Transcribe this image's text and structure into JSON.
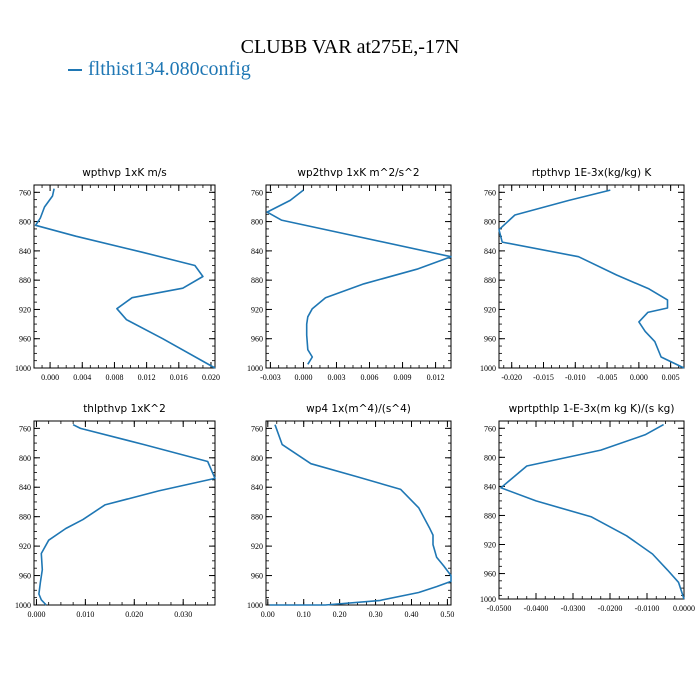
{
  "title": "CLUBB VAR at275E,-17N",
  "legend": {
    "label": "flthist134.080config",
    "color": "#1f77b4"
  },
  "chart_data": [
    {
      "type": "line",
      "title": "wpthvp  1xK m/s",
      "xlim": [
        -0.002,
        0.0205
      ],
      "xticks": [
        "0.000",
        "0.004",
        "0.008",
        "0.012",
        "0.016",
        "0.020"
      ],
      "ylim": [
        750,
        1000
      ],
      "yticks": [
        "760",
        "800",
        "840",
        "880",
        "920",
        "960",
        "1000"
      ],
      "series": [
        {
          "x": [
            0.0005,
            0.0003,
            -0.0007,
            -0.0012,
            -0.0018,
            0.0032,
            0.0115,
            0.018,
            0.019,
            0.0165,
            0.0102,
            0.0083,
            0.0095,
            0.014,
            0.0205
          ],
          "y": [
            755,
            765,
            780,
            795,
            805,
            820,
            842,
            860,
            875,
            891,
            904,
            919,
            934,
            960,
            1000
          ]
        }
      ]
    },
    {
      "type": "line",
      "title": "wp2thvp  1xK m^2/s^2",
      "xlim": [
        -0.0034,
        0.0134
      ],
      "xticks": [
        "-0.003",
        "0.000",
        "0.003",
        "0.006",
        "0.009",
        "0.012"
      ],
      "ylim": [
        750,
        1000
      ],
      "yticks": [
        "760",
        "800",
        "840",
        "880",
        "920",
        "960",
        "1000"
      ],
      "series": [
        {
          "x": [
            0.0,
            -0.0012,
            -0.0033,
            -0.002,
            0.0134,
            0.0103,
            0.0055,
            0.002,
            0.0008,
            0.0004,
            0.0003,
            0.0003,
            0.0004,
            0.0008,
            0.0004
          ],
          "y": [
            757,
            771,
            787,
            798,
            848,
            865,
            885,
            904,
            919,
            930,
            940,
            955,
            975,
            985,
            995
          ]
        }
      ]
    },
    {
      "type": "line",
      "title": "rtpthvp  1E-3x(kg/kg) K",
      "xlim": [
        -0.022,
        0.0071
      ],
      "xticks": [
        "-0.020",
        "-0.015",
        "-0.010",
        "-0.005",
        "0.000",
        "0.005"
      ],
      "ylim": [
        750,
        1000
      ],
      "yticks": [
        "760",
        "800",
        "840",
        "880",
        "920",
        "960",
        "1000"
      ],
      "series": [
        {
          "x": [
            -0.0045,
            -0.011,
            -0.0195,
            -0.022,
            -0.0215,
            -0.0095,
            -0.0035,
            0.0016,
            0.0045,
            0.0045,
            0.0014,
            0.0,
            0.001,
            0.0025,
            0.0035,
            0.0071
          ],
          "y": [
            757,
            771,
            791,
            811,
            828,
            848,
            873,
            892,
            907,
            918,
            924,
            937,
            950,
            964,
            985,
            1000
          ]
        }
      ]
    },
    {
      "type": "line",
      "title": "thlpthvp  1xK^2",
      "xlim": [
        -0.0005,
        0.0365
      ],
      "xticks": [
        "0.000",
        "0.010",
        "0.020",
        "0.030"
      ],
      "ylim": [
        750,
        1000
      ],
      "yticks": [
        "760",
        "800",
        "840",
        "880",
        "920",
        "960",
        "1000"
      ],
      "series": [
        {
          "x": [
            0.0075,
            0.009,
            0.022,
            0.035,
            0.0365,
            0.025,
            0.014,
            0.0095,
            0.006,
            0.0025,
            0.001,
            0.0012,
            0.0008,
            0.0005,
            0.001,
            0.002
          ],
          "y": [
            755,
            760,
            782,
            805,
            828,
            845,
            864,
            884,
            896,
            912,
            930,
            952,
            969,
            985,
            993,
            1000
          ]
        }
      ]
    },
    {
      "type": "line",
      "title": "wp4  1x(m^4)/(s^4)",
      "xlim": [
        -0.005,
        0.51
      ],
      "xticks": [
        "0.00",
        "0.10",
        "0.20",
        "0.30",
        "0.40",
        "0.50"
      ],
      "ylim": [
        750,
        1000
      ],
      "yticks": [
        "760",
        "800",
        "840",
        "880",
        "920",
        "960",
        "1000"
      ],
      "series": [
        {
          "x": [
            0.02,
            0.04,
            0.12,
            0.25,
            0.37,
            0.42,
            0.45,
            0.46,
            0.46,
            0.47,
            0.49,
            0.51,
            0.51,
            0.47,
            0.42,
            0.31,
            0.16,
            0.005
          ],
          "y": [
            755,
            782,
            808,
            826,
            843,
            868,
            895,
            905,
            918,
            935,
            947,
            960,
            968,
            975,
            983,
            994,
            1000,
            1000
          ]
        }
      ]
    },
    {
      "type": "line",
      "title": "wprtpthlp  1-E-3x(m kg K)/(s kg)",
      "xlim": [
        -0.05,
        0.0
      ],
      "xticks": [
        "-0.0500",
        "-0.0400",
        "-0.0300",
        "-0.0200",
        "-0.0100",
        "0.0000"
      ],
      "ylim": [
        750,
        995
      ],
      "yticks": [
        "760",
        "800",
        "840",
        "880",
        "920",
        "960",
        "1000"
      ],
      "series": [
        {
          "x": [
            -0.0055,
            -0.0105,
            -0.0225,
            -0.0425,
            -0.0495,
            -0.04,
            -0.025,
            -0.0155,
            -0.0085,
            -0.0045,
            -0.0015,
            0.0
          ],
          "y": [
            755,
            769,
            790,
            812,
            842,
            860,
            882,
            908,
            933,
            955,
            972,
            995
          ]
        }
      ]
    }
  ]
}
